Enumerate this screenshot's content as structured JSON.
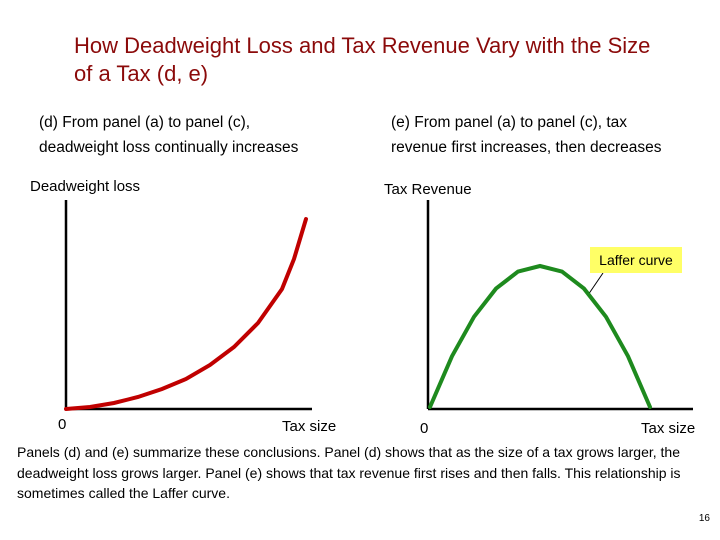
{
  "title": "How Deadweight Loss and Tax Revenue Vary with the Size of a Tax (d, e)",
  "panel_d": {
    "caption_line1": "(d) From panel (a) to panel (c),",
    "caption_line2": "deadweight loss continually increases",
    "y_label": "Deadweight loss",
    "x_label": "Tax size",
    "origin_label": "0",
    "curve_color": "#c00000"
  },
  "panel_e": {
    "caption_line1": "(e) From panel (a) to panel (c), tax",
    "caption_line2": "revenue first increases, then decreases",
    "y_label": "Tax Revenue",
    "x_label": "Tax size",
    "origin_label": "0",
    "annotation": "Laffer curve",
    "curve_color": "#1e8a1e",
    "annotation_bg": "#ffff66"
  },
  "summary": "Panels (d) and (e) summarize these conclusions. Panel (d) shows that as the size of a tax grows larger, the deadweight loss grows larger. Panel (e) shows that tax revenue first rises and then falls. This relationship is sometimes called the Laffer curve.",
  "page_number": "16",
  "chart_data": [
    {
      "type": "line",
      "title": "(d) From panel (a) to panel (c), deadweight loss continually increases",
      "xlabel": "Tax size",
      "ylabel": "Deadweight loss",
      "xlim": [
        0,
        1
      ],
      "ylim": [
        0,
        1
      ],
      "grid": false,
      "series": [
        {
          "x": [
            0,
            0.1,
            0.2,
            0.3,
            0.4,
            0.5,
            0.6,
            0.7,
            0.8,
            0.9,
            0.95,
            1.0
          ],
          "values": [
            0,
            0.01,
            0.03,
            0.06,
            0.1,
            0.15,
            0.22,
            0.31,
            0.43,
            0.6,
            0.75,
            0.95
          ]
        }
      ]
    },
    {
      "type": "line",
      "title": "(e) From panel (a) to panel (c), tax revenue first increases, then decreases",
      "xlabel": "Tax size",
      "ylabel": "Tax Revenue",
      "xlim": [
        0,
        1
      ],
      "ylim": [
        0,
        1
      ],
      "grid": false,
      "annotations": [
        "Laffer curve"
      ],
      "series": [
        {
          "name": "Laffer curve",
          "x": [
            0,
            0.1,
            0.2,
            0.3,
            0.4,
            0.5,
            0.6,
            0.7,
            0.8,
            0.9,
            1.0
          ],
          "values": [
            0,
            0.36,
            0.64,
            0.84,
            0.96,
            1.0,
            0.96,
            0.84,
            0.64,
            0.36,
            0
          ]
        }
      ]
    }
  ]
}
